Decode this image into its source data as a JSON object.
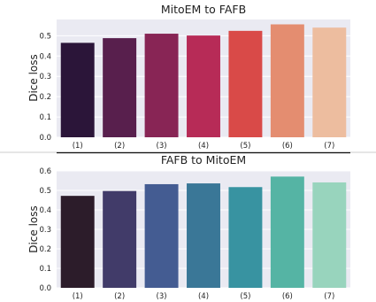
{
  "chart_data": [
    {
      "type": "bar",
      "title": "MitoEM to FAFB",
      "xlabel": "",
      "ylabel": "Dice loss",
      "categories": [
        "(1)",
        "(2)",
        "(3)",
        "(4)",
        "(5)",
        "(6)",
        "(7)"
      ],
      "values": [
        0.465,
        0.488,
        0.51,
        0.501,
        0.524,
        0.556,
        0.54
      ],
      "ylim": [
        0,
        0.58
      ],
      "yticks": [
        "0.0",
        "0.1",
        "0.2",
        "0.3",
        "0.4",
        "0.5"
      ],
      "grid": true,
      "colors": [
        "#2b1539",
        "#581f4d",
        "#882555",
        "#b72b57",
        "#d94a48",
        "#e48d70",
        "#edbd9f"
      ]
    },
    {
      "type": "bar",
      "title": "FAFB to MitoEM",
      "xlabel": "",
      "ylabel": "Dice loss",
      "categories": [
        "(1)",
        "(2)",
        "(3)",
        "(4)",
        "(5)",
        "(6)",
        "(7)"
      ],
      "values": [
        0.472,
        0.497,
        0.532,
        0.536,
        0.517,
        0.571,
        0.541
      ],
      "ylim": [
        0,
        0.6
      ],
      "yticks": [
        "0.0",
        "0.1",
        "0.2",
        "0.3",
        "0.4",
        "0.5",
        "0.6"
      ],
      "grid": true,
      "colors": [
        "#2c1c2a",
        "#413b69",
        "#445c92",
        "#3a7797",
        "#3893a1",
        "#55b4a4",
        "#98d4bd"
      ]
    }
  ]
}
